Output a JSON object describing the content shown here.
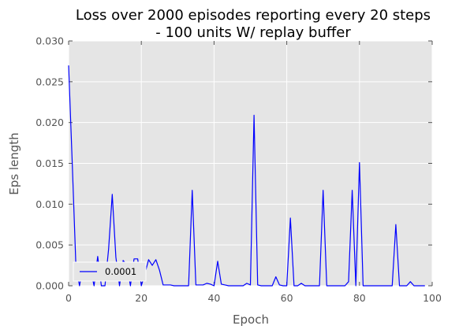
{
  "chart_data": {
    "type": "line",
    "title": "Loss over 2000 episodes reporting every 20 steps\n- 100 units W/ replay buffer",
    "xlabel": "Epoch",
    "ylabel": "Eps length",
    "xlim": [
      0,
      100
    ],
    "ylim": [
      0,
      0.03
    ],
    "xticks": [
      "0",
      "20",
      "40",
      "60",
      "80",
      "100"
    ],
    "yticks": [
      "0.000",
      "0.005",
      "0.010",
      "0.015",
      "0.020",
      "0.025",
      "0.030"
    ],
    "grid": true,
    "legend_position": "lower-left",
    "background_color": "#e5e5e5",
    "series": [
      {
        "name": "0.0001",
        "color": "#0000ff",
        "x": [
          0,
          1,
          2,
          3,
          4,
          5,
          6,
          7,
          8,
          9,
          10,
          11,
          12,
          13,
          14,
          15,
          16,
          17,
          18,
          19,
          20,
          21,
          22,
          23,
          24,
          25,
          26,
          27,
          28,
          29,
          30,
          31,
          32,
          33,
          34,
          35,
          36,
          37,
          38,
          39,
          40,
          41,
          42,
          43,
          44,
          45,
          46,
          47,
          48,
          49,
          50,
          51,
          52,
          53,
          54,
          55,
          56,
          57,
          58,
          59,
          60,
          61,
          62,
          63,
          64,
          65,
          66,
          67,
          68,
          69,
          70,
          71,
          72,
          73,
          74,
          75,
          76,
          77,
          78,
          79,
          80,
          81,
          82,
          83,
          84,
          85,
          86,
          87,
          88,
          89,
          90,
          91,
          92,
          93,
          94,
          95,
          96,
          97,
          98
        ],
        "values": [
          0.027,
          0.015,
          0.0025,
          0.0,
          0.0025,
          0.0021,
          0.0021,
          0.0,
          0.0036,
          0.0,
          0.0,
          0.0045,
          0.0112,
          0.0035,
          0.0,
          0.0031,
          0.0026,
          0.0,
          0.0033,
          0.0033,
          0.0,
          0.0015,
          0.0032,
          0.0025,
          0.0032,
          0.0019,
          0.0001,
          0.0001,
          0.0001,
          0.0,
          0.0,
          0.0,
          0.0,
          0.0,
          0.0117,
          0.0001,
          0.0001,
          0.0001,
          0.0003,
          0.0002,
          0.0,
          0.003,
          0.0002,
          0.0001,
          0.0,
          0.0,
          0.0,
          0.0,
          0.0,
          0.0003,
          0.0001,
          0.0209,
          0.0001,
          0.0,
          0.0,
          0.0,
          0.0,
          0.0011,
          0.0001,
          0.0,
          0.0,
          0.0083,
          0.0,
          0.0,
          0.0003,
          0.0,
          0.0,
          0.0,
          0.0,
          0.0,
          0.0117,
          0.0,
          0.0,
          0.0,
          0.0,
          0.0,
          0.0,
          0.0005,
          0.0117,
          0.0,
          0.0151,
          0.0,
          0.0,
          0.0,
          0.0,
          0.0,
          0.0,
          0.0,
          0.0,
          0.0,
          0.0075,
          0.0,
          0.0,
          0.0,
          0.0005,
          0.0,
          0.0,
          0.0,
          0.0
        ]
      }
    ]
  }
}
